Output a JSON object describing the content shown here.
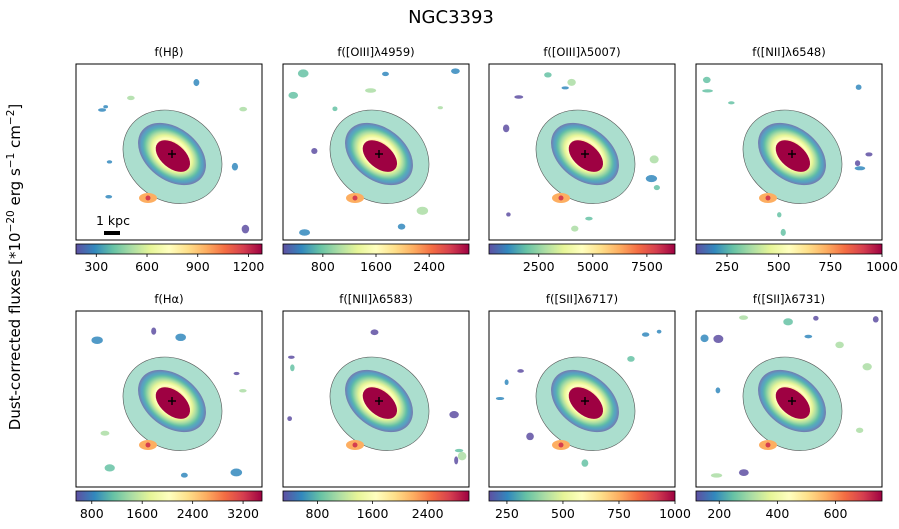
{
  "figure": {
    "title": "NGC3393",
    "ylabel": "Dust-corrected fluxes [*10$^{-20}$ erg s$^{-1}$ cm$^{-2}$]",
    "ylabel_parts": [
      "Dust-corrected fluxes [*10",
      "−20",
      " erg s",
      "−1",
      " cm",
      "−2",
      "]"
    ],
    "scalebar_label": "1 kpc",
    "colormap": "Spectral_r",
    "colormap_stops": [
      "#5e4fa2",
      "#3288bd",
      "#66c2a5",
      "#abdda4",
      "#e6f598",
      "#ffffbf",
      "#fee08b",
      "#fdae61",
      "#f46d43",
      "#d53e4f",
      "#9e0142"
    ]
  },
  "chart_data": [
    {
      "type": "heatmap",
      "title": "f(Hβ)",
      "cbar_range": [
        180,
        1280
      ],
      "cbar_ticks": [
        "300",
        "600",
        "900",
        "1200"
      ],
      "cbar_tick_values": [
        300,
        600,
        900,
        1200
      ]
    },
    {
      "type": "heatmap",
      "title": "f([OIII]λ4959)",
      "cbar_range": [
        200,
        3000
      ],
      "cbar_ticks": [
        "800",
        "1600",
        "2400"
      ],
      "cbar_tick_values": [
        800,
        1600,
        2400
      ]
    },
    {
      "type": "heatmap",
      "title": "f([OIII]λ5007)",
      "cbar_range": [
        200,
        8800
      ],
      "cbar_ticks": [
        "2500",
        "5000",
        "7500"
      ],
      "cbar_tick_values": [
        2500,
        5000,
        7500
      ]
    },
    {
      "type": "heatmap",
      "title": "f([NII]λ6548)",
      "cbar_range": [
        100,
        1000
      ],
      "cbar_ticks": [
        "250",
        "500",
        "750",
        "1000"
      ],
      "cbar_tick_values": [
        250,
        500,
        750,
        1000
      ]
    },
    {
      "type": "heatmap",
      "title": "f(Hα)",
      "cbar_range": [
        550,
        3500
      ],
      "cbar_ticks": [
        "800",
        "1600",
        "2400",
        "3200"
      ],
      "cbar_tick_values": [
        800,
        1600,
        2400,
        3200
      ]
    },
    {
      "type": "heatmap",
      "title": "f([NII]λ6583)",
      "cbar_range": [
        300,
        3000
      ],
      "cbar_ticks": [
        "800",
        "1600",
        "2400"
      ],
      "cbar_tick_values": [
        800,
        1600,
        2400
      ]
    },
    {
      "type": "heatmap",
      "title": "f([SII]λ6717)",
      "cbar_range": [
        170,
        1000
      ],
      "cbar_ticks": [
        "250",
        "500",
        "750",
        "1000"
      ],
      "cbar_tick_values": [
        250,
        500,
        750,
        1000
      ]
    },
    {
      "type": "heatmap",
      "title": "f([SII]λ6731)",
      "cbar_range": [
        120,
        760
      ],
      "cbar_ticks": [
        "200",
        "400",
        "600"
      ],
      "cbar_tick_values": [
        200,
        400,
        600
      ]
    }
  ]
}
